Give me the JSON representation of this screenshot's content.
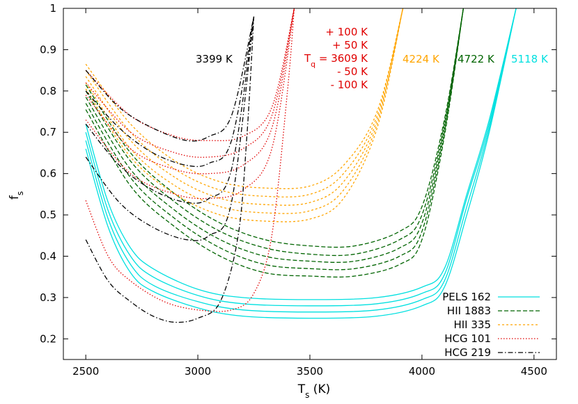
{
  "chart_data": {
    "type": "line",
    "xlabel": "T",
    "xlabel_sub": "s",
    "xlabel_unit": " (K)",
    "ylabel": "f",
    "ylabel_sub": "s",
    "xlim": [
      2400,
      4600
    ],
    "ylim": [
      0.15,
      1.0
    ],
    "xticks": [
      2500,
      3000,
      3500,
      4000,
      4500
    ],
    "yticks": [
      0.2,
      0.3,
      0.4,
      0.5,
      0.6,
      0.7,
      0.8,
      0.9,
      1
    ],
    "grid": false,
    "legend_position": "bottom-right",
    "annotations": {
      "hcg219": "3399 K",
      "hii335": "4224 K",
      "hii1883": "4722 K",
      "pels162": "5118 K",
      "hcg101_lines": [
        "+ 100 K",
        "+ 50 K",
        "T",
        "q",
        " = 3609 K",
        "- 50 K",
        "- 100 K"
      ]
    },
    "series": [
      {
        "name": "PELS 162",
        "color": "#00e0e0",
        "dash": "",
        "width": 1.3,
        "x_end": 4420,
        "curves": [
          [
            [
              2500,
              0.72
            ],
            [
              2600,
              0.53
            ],
            [
              2700,
              0.42
            ],
            [
              2800,
              0.37
            ],
            [
              3000,
              0.32
            ],
            [
              3200,
              0.3
            ],
            [
              3500,
              0.295
            ],
            [
              3800,
              0.3
            ],
            [
              4000,
              0.325
            ],
            [
              4100,
              0.37
            ],
            [
              4200,
              0.55
            ],
            [
              4300,
              0.73
            ],
            [
              4420,
              1.0
            ]
          ],
          [
            [
              2500,
              0.7
            ],
            [
              2600,
              0.51
            ],
            [
              2700,
              0.4
            ],
            [
              2800,
              0.35
            ],
            [
              3000,
              0.305
            ],
            [
              3200,
              0.285
            ],
            [
              3500,
              0.28
            ],
            [
              3800,
              0.285
            ],
            [
              4000,
              0.31
            ],
            [
              4100,
              0.355
            ],
            [
              4200,
              0.54
            ],
            [
              4300,
              0.72
            ],
            [
              4420,
              1.0
            ]
          ],
          [
            [
              2500,
              0.68
            ],
            [
              2600,
              0.49
            ],
            [
              2700,
              0.38
            ],
            [
              2800,
              0.33
            ],
            [
              3000,
              0.29
            ],
            [
              3200,
              0.27
            ],
            [
              3500,
              0.265
            ],
            [
              3800,
              0.27
            ],
            [
              4000,
              0.295
            ],
            [
              4100,
              0.34
            ],
            [
              4200,
              0.52
            ],
            [
              4300,
              0.71
            ],
            [
              4420,
              1.0
            ]
          ],
          [
            [
              2500,
              0.66
            ],
            [
              2600,
              0.47
            ],
            [
              2700,
              0.36
            ],
            [
              2800,
              0.315
            ],
            [
              3000,
              0.275
            ],
            [
              3200,
              0.255
            ],
            [
              3500,
              0.25
            ],
            [
              3800,
              0.255
            ],
            [
              4000,
              0.28
            ],
            [
              4100,
              0.325
            ],
            [
              4200,
              0.5
            ],
            [
              4300,
              0.7
            ],
            [
              4420,
              1.0
            ]
          ]
        ]
      },
      {
        "name": "HII 1883",
        "color": "#006400",
        "dash": "6,3",
        "width": 1.3,
        "x_end": 4185,
        "curves": [
          [
            [
              2500,
              0.815
            ],
            [
              2700,
              0.65
            ],
            [
              2900,
              0.55
            ],
            [
              3100,
              0.48
            ],
            [
              3300,
              0.44
            ],
            [
              3500,
              0.425
            ],
            [
              3700,
              0.425
            ],
            [
              3900,
              0.46
            ],
            [
              4000,
              0.52
            ],
            [
              4100,
              0.73
            ],
            [
              4185,
              1.0
            ]
          ],
          [
            [
              2500,
              0.8
            ],
            [
              2700,
              0.63
            ],
            [
              2900,
              0.53
            ],
            [
              3100,
              0.46
            ],
            [
              3300,
              0.42
            ],
            [
              3500,
              0.405
            ],
            [
              3700,
              0.405
            ],
            [
              3900,
              0.44
            ],
            [
              4000,
              0.5
            ],
            [
              4100,
              0.72
            ],
            [
              4185,
              1.0
            ]
          ],
          [
            [
              2500,
              0.785
            ],
            [
              2700,
              0.61
            ],
            [
              2900,
              0.51
            ],
            [
              3100,
              0.44
            ],
            [
              3300,
              0.4
            ],
            [
              3500,
              0.388
            ],
            [
              3700,
              0.388
            ],
            [
              3900,
              0.42
            ],
            [
              4000,
              0.48
            ],
            [
              4100,
              0.71
            ],
            [
              4185,
              1.0
            ]
          ],
          [
            [
              2500,
              0.77
            ],
            [
              2700,
              0.59
            ],
            [
              2900,
              0.49
            ],
            [
              3100,
              0.42
            ],
            [
              3300,
              0.38
            ],
            [
              3500,
              0.37
            ],
            [
              3700,
              0.37
            ],
            [
              3900,
              0.4
            ],
            [
              4000,
              0.46
            ],
            [
              4100,
              0.7
            ],
            [
              4185,
              1.0
            ]
          ],
          [
            [
              2500,
              0.755
            ],
            [
              2700,
              0.57
            ],
            [
              2900,
              0.47
            ],
            [
              3100,
              0.4
            ],
            [
              3300,
              0.36
            ],
            [
              3500,
              0.352
            ],
            [
              3700,
              0.352
            ],
            [
              3900,
              0.38
            ],
            [
              4000,
              0.44
            ],
            [
              4100,
              0.69
            ],
            [
              4185,
              1.0
            ]
          ]
        ]
      },
      {
        "name": "HII 335",
        "color": "#ffa500",
        "dash": "3,3",
        "width": 1.3,
        "x_end": 3915,
        "curves": [
          [
            [
              2500,
              0.865
            ],
            [
              2700,
              0.72
            ],
            [
              2900,
              0.63
            ],
            [
              3100,
              0.58
            ],
            [
              3300,
              0.565
            ],
            [
              3500,
              0.57
            ],
            [
              3650,
              0.62
            ],
            [
              3800,
              0.75
            ],
            [
              3915,
              1.0
            ]
          ],
          [
            [
              2500,
              0.85
            ],
            [
              2700,
              0.7
            ],
            [
              2900,
              0.61
            ],
            [
              3100,
              0.56
            ],
            [
              3300,
              0.545
            ],
            [
              3500,
              0.55
            ],
            [
              3650,
              0.6
            ],
            [
              3800,
              0.74
            ],
            [
              3915,
              1.0
            ]
          ],
          [
            [
              2500,
              0.835
            ],
            [
              2700,
              0.68
            ],
            [
              2900,
              0.59
            ],
            [
              3100,
              0.54
            ],
            [
              3300,
              0.525
            ],
            [
              3500,
              0.53
            ],
            [
              3650,
              0.58
            ],
            [
              3800,
              0.73
            ],
            [
              3915,
              1.0
            ]
          ],
          [
            [
              2500,
              0.82
            ],
            [
              2700,
              0.66
            ],
            [
              2900,
              0.57
            ],
            [
              3100,
              0.52
            ],
            [
              3300,
              0.505
            ],
            [
              3500,
              0.51
            ],
            [
              3650,
              0.56
            ],
            [
              3800,
              0.72
            ],
            [
              3915,
              1.0
            ]
          ],
          [
            [
              2500,
              0.805
            ],
            [
              2700,
              0.64
            ],
            [
              2900,
              0.55
            ],
            [
              3100,
              0.5
            ],
            [
              3300,
              0.485
            ],
            [
              3500,
              0.49
            ],
            [
              3650,
              0.54
            ],
            [
              3800,
              0.71
            ],
            [
              3915,
              1.0
            ]
          ]
        ]
      },
      {
        "name": "HCG 101",
        "color": "#e00000",
        "dash": "1.5,2.5",
        "width": 1.3,
        "x_end": 3430,
        "curves": [
          [
            [
              2500,
              0.85
            ],
            [
              2700,
              0.74
            ],
            [
              2900,
              0.69
            ],
            [
              3050,
              0.68
            ],
            [
              3200,
              0.69
            ],
            [
              3330,
              0.76
            ],
            [
              3430,
              1.0
            ]
          ],
          [
            [
              2500,
              0.82
            ],
            [
              2700,
              0.7
            ],
            [
              2900,
              0.65
            ],
            [
              3050,
              0.64
            ],
            [
              3200,
              0.66
            ],
            [
              3330,
              0.74
            ],
            [
              3430,
              1.0
            ]
          ],
          [
            [
              2500,
              0.79
            ],
            [
              2700,
              0.66
            ],
            [
              2900,
              0.61
            ],
            [
              3050,
              0.6
            ],
            [
              3200,
              0.62
            ],
            [
              3330,
              0.71
            ],
            [
              3430,
              1.0
            ]
          ],
          [
            [
              2500,
              0.73
            ],
            [
              2700,
              0.6
            ],
            [
              2900,
              0.55
            ],
            [
              3050,
              0.54
            ],
            [
              3200,
              0.56
            ],
            [
              3330,
              0.66
            ],
            [
              3430,
              1.0
            ]
          ],
          [
            [
              2500,
              0.535
            ],
            [
              2600,
              0.4
            ],
            [
              2700,
              0.34
            ],
            [
              2850,
              0.29
            ],
            [
              3000,
              0.27
            ],
            [
              3150,
              0.27
            ],
            [
              3250,
              0.31
            ],
            [
              3330,
              0.45
            ],
            [
              3400,
              0.8
            ],
            [
              3430,
              1.0
            ]
          ]
        ]
      },
      {
        "name": "HCG 219",
        "color": "#000000",
        "dash": "7,3,1.5,3",
        "width": 1.3,
        "x_end": 3250,
        "curves": [
          [
            [
              2500,
              0.85
            ],
            [
              2650,
              0.76
            ],
            [
              2800,
              0.71
            ],
            [
              2950,
              0.68
            ],
            [
              3050,
              0.69
            ],
            [
              3150,
              0.74
            ],
            [
              3250,
              0.98
            ]
          ],
          [
            [
              2500,
              0.8
            ],
            [
              2650,
              0.71
            ],
            [
              2800,
              0.65
            ],
            [
              2950,
              0.62
            ],
            [
              3050,
              0.625
            ],
            [
              3150,
              0.68
            ],
            [
              3250,
              0.98
            ]
          ],
          [
            [
              2500,
              0.72
            ],
            [
              2650,
              0.62
            ],
            [
              2800,
              0.56
            ],
            [
              2950,
              0.53
            ],
            [
              3050,
              0.54
            ],
            [
              3150,
              0.61
            ],
            [
              3250,
              0.98
            ]
          ],
          [
            [
              2500,
              0.64
            ],
            [
              2650,
              0.53
            ],
            [
              2800,
              0.47
            ],
            [
              2950,
              0.44
            ],
            [
              3050,
              0.45
            ],
            [
              3150,
              0.53
            ],
            [
              3250,
              0.98
            ]
          ],
          [
            [
              2500,
              0.44
            ],
            [
              2600,
              0.34
            ],
            [
              2700,
              0.29
            ],
            [
              2800,
              0.255
            ],
            [
              2900,
              0.24
            ],
            [
              3000,
              0.25
            ],
            [
              3100,
              0.29
            ],
            [
              3180,
              0.45
            ],
            [
              3220,
              0.7
            ],
            [
              3250,
              0.98
            ]
          ]
        ]
      }
    ]
  }
}
